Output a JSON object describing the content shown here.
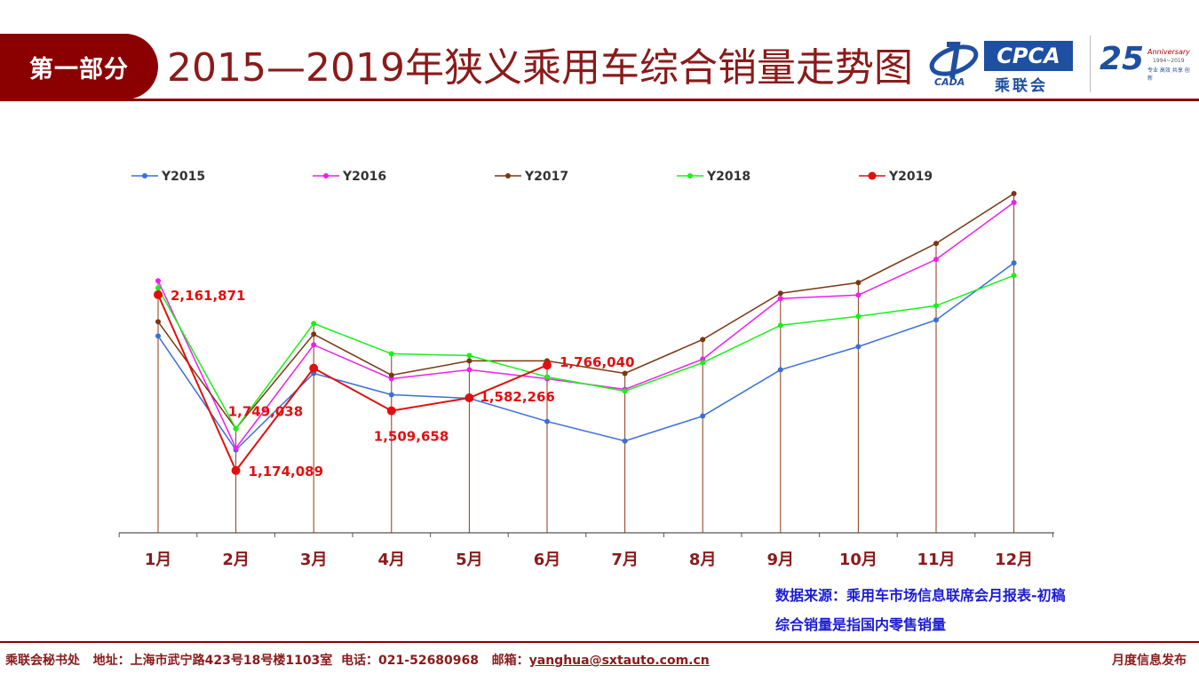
{
  "header": {
    "section_tag": "第一部分",
    "title": "2015—2019年狭义乘用车综合销量走势图",
    "logo_cpca": "CPCA",
    "logo_cpca_cn": "乘联会",
    "logo_cada": "CADA",
    "anniversary_number": "25",
    "anniversary_text": "Anniversary",
    "anniversary_years": "1994~2019",
    "anniversary_tags": "专业 高效 共享 创新"
  },
  "chart_data": {
    "type": "line",
    "categories": [
      "1月",
      "2月",
      "3月",
      "4月",
      "5月",
      "6月",
      "7月",
      "8月",
      "9月",
      "10月",
      "11月",
      "12月"
    ],
    "ylim": [
      500000,
      2700000
    ],
    "grid": false,
    "legend_position": "top",
    "series": [
      {
        "name": "Y2015",
        "color": "#3a6fd8",
        "values": [
          1930000,
          1290000,
          1720000,
          1600000,
          1580000,
          1450000,
          1340000,
          1480000,
          1740000,
          1870000,
          2020000,
          2340000
        ]
      },
      {
        "name": "Y2016",
        "color": "#ee20ee",
        "values": [
          2240000,
          1300000,
          1880000,
          1690000,
          1740000,
          1690000,
          1630000,
          1800000,
          2140000,
          2160000,
          2360000,
          2680000
        ]
      },
      {
        "name": "Y2017",
        "color": "#7a3612",
        "values": [
          2010000,
          1410000,
          1940000,
          1710000,
          1790000,
          1790000,
          1720000,
          1910000,
          2170000,
          2230000,
          2450000,
          2730000
        ]
      },
      {
        "name": "Y2018",
        "color": "#18f018",
        "values": [
          2200000,
          1410000,
          2000000,
          1830000,
          1820000,
          1700000,
          1620000,
          1780000,
          1990000,
          2040000,
          2100000,
          2270000
        ]
      },
      {
        "name": "Y2019",
        "color": "#e01010",
        "values": [
          2161871,
          1174089,
          1749038,
          1509658,
          1582266,
          1766040,
          null,
          null,
          null,
          null,
          null,
          null
        ]
      }
    ],
    "data_labels": [
      "2,161,871",
      "1,174,089",
      "1,749,038",
      "1,509,658",
      "1,582,266",
      "1,766,040"
    ]
  },
  "notes": {
    "source": "数据来源：乘用车市场信息联席会月报表-初稿",
    "definition": "综合销量是指国内零售销量"
  },
  "footer": {
    "org": "乘联会秘书处",
    "address_label": "地址：上海市武宁路423号18号楼1103室",
    "phone_label": "电话：021-52680968",
    "email_label": "邮箱：",
    "email": "yanghua@sxtauto.com.cn",
    "right": "月度信息发布"
  }
}
